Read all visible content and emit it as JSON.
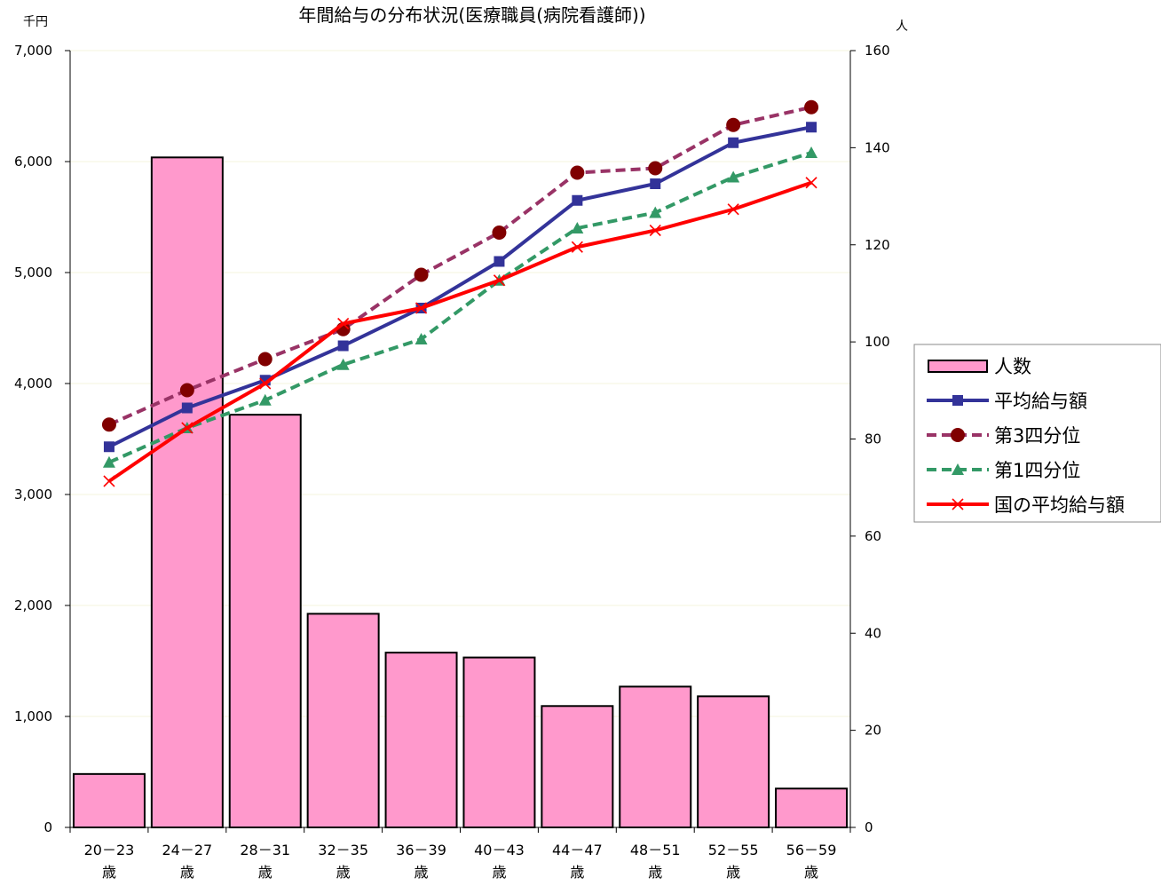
{
  "chart_data": {
    "type": "bar",
    "title": "年間給与の分布状況(医療職員(病院看護師))",
    "y_left_unit": "千円",
    "y_right_unit": "人",
    "y_left_range": [
      0,
      7000
    ],
    "y_right_range": [
      0,
      160
    ],
    "y_left_ticks": [
      "0",
      "1,000",
      "2,000",
      "3,000",
      "4,000",
      "5,000",
      "6,000",
      "7,000"
    ],
    "y_right_ticks": [
      "0",
      "20",
      "40",
      "60",
      "80",
      "100",
      "120",
      "140",
      "160"
    ],
    "categories": [
      {
        "range": "20－23",
        "unit": "歳"
      },
      {
        "range": "24－27",
        "unit": "歳"
      },
      {
        "range": "28－31",
        "unit": "歳"
      },
      {
        "range": "32－35",
        "unit": "歳"
      },
      {
        "range": "36－39",
        "unit": "歳"
      },
      {
        "range": "40－43",
        "unit": "歳"
      },
      {
        "range": "44－47",
        "unit": "歳"
      },
      {
        "range": "48－51",
        "unit": "歳"
      },
      {
        "range": "52－55",
        "unit": "歳"
      },
      {
        "range": "56－59",
        "unit": "歳"
      }
    ],
    "grid": true,
    "legend_position": "right",
    "series": [
      {
        "name": "人数",
        "kind": "bar",
        "axis": "right",
        "color": "#ff99cc",
        "values": [
          11,
          138,
          85,
          44,
          36,
          35,
          25,
          29,
          27,
          8
        ]
      },
      {
        "name": "平均給与額",
        "kind": "line",
        "axis": "left",
        "color": "#333399",
        "dash": "solid",
        "marker": "square",
        "values": [
          3430,
          3780,
          4030,
          4340,
          4680,
          5100,
          5650,
          5800,
          6170,
          6310
        ]
      },
      {
        "name": "第3四分位",
        "kind": "line",
        "axis": "left",
        "color": "#993366",
        "dash": "dashed",
        "marker": "circle",
        "values": [
          3630,
          3940,
          4220,
          4490,
          4980,
          5360,
          5900,
          5940,
          6330,
          6490
        ]
      },
      {
        "name": "第1四分位",
        "kind": "line",
        "axis": "left",
        "color": "#339966",
        "dash": "dashed",
        "marker": "triangle",
        "values": [
          3290,
          3600,
          3850,
          4170,
          4400,
          4930,
          5400,
          5540,
          5860,
          6080
        ]
      },
      {
        "name": "国の平均給与額",
        "kind": "line",
        "axis": "left",
        "color": "#ff0000",
        "dash": "solid",
        "marker": "x",
        "values": [
          3120,
          3600,
          4000,
          4540,
          4680,
          4930,
          5230,
          5380,
          5570,
          5810
        ]
      }
    ]
  }
}
